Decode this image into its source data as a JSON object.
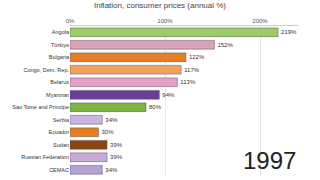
{
  "chart_data": {
    "type": "bar",
    "orientation": "horizontal",
    "title": "Inflation, consumer prices (annual %)",
    "annotations": [
      "1997"
    ],
    "categories": [
      "Angola",
      "Türkiye",
      "Bulgaria",
      "Congo, Dem. Rep.",
      "Belarus",
      "Myanmar",
      "Sao Tome and Principe",
      "Serbia",
      "Ecuador",
      "Sudan",
      "Russian Federation",
      "CEMAC"
    ],
    "values": [
      219,
      152,
      122,
      117,
      113,
      94,
      80,
      34,
      30,
      39,
      39,
      34
    ],
    "value_labels": [
      "219%",
      "152%",
      "122%",
      "117%",
      "113%",
      "94%",
      "80%",
      "34%",
      "30%",
      "39%",
      "39%",
      "34%"
    ],
    "colors": [
      "#9ccc65",
      "#d9a3b8",
      "#e67e22",
      "#f0a35e",
      "#e6a0c8",
      "#6a3d9a",
      "#7cb342",
      "#c8b6dc",
      "#e67e22",
      "#8b4513",
      "#c9a9d9",
      "#b3a3d6"
    ],
    "data_labels": true,
    "xlim": [
      0,
      240
    ],
    "xticks": [
      {
        "value": 0,
        "label": "0%"
      },
      {
        "value": 100,
        "label": "100%"
      },
      {
        "value": 200,
        "label": "200%"
      }
    ],
    "grid": true
  }
}
